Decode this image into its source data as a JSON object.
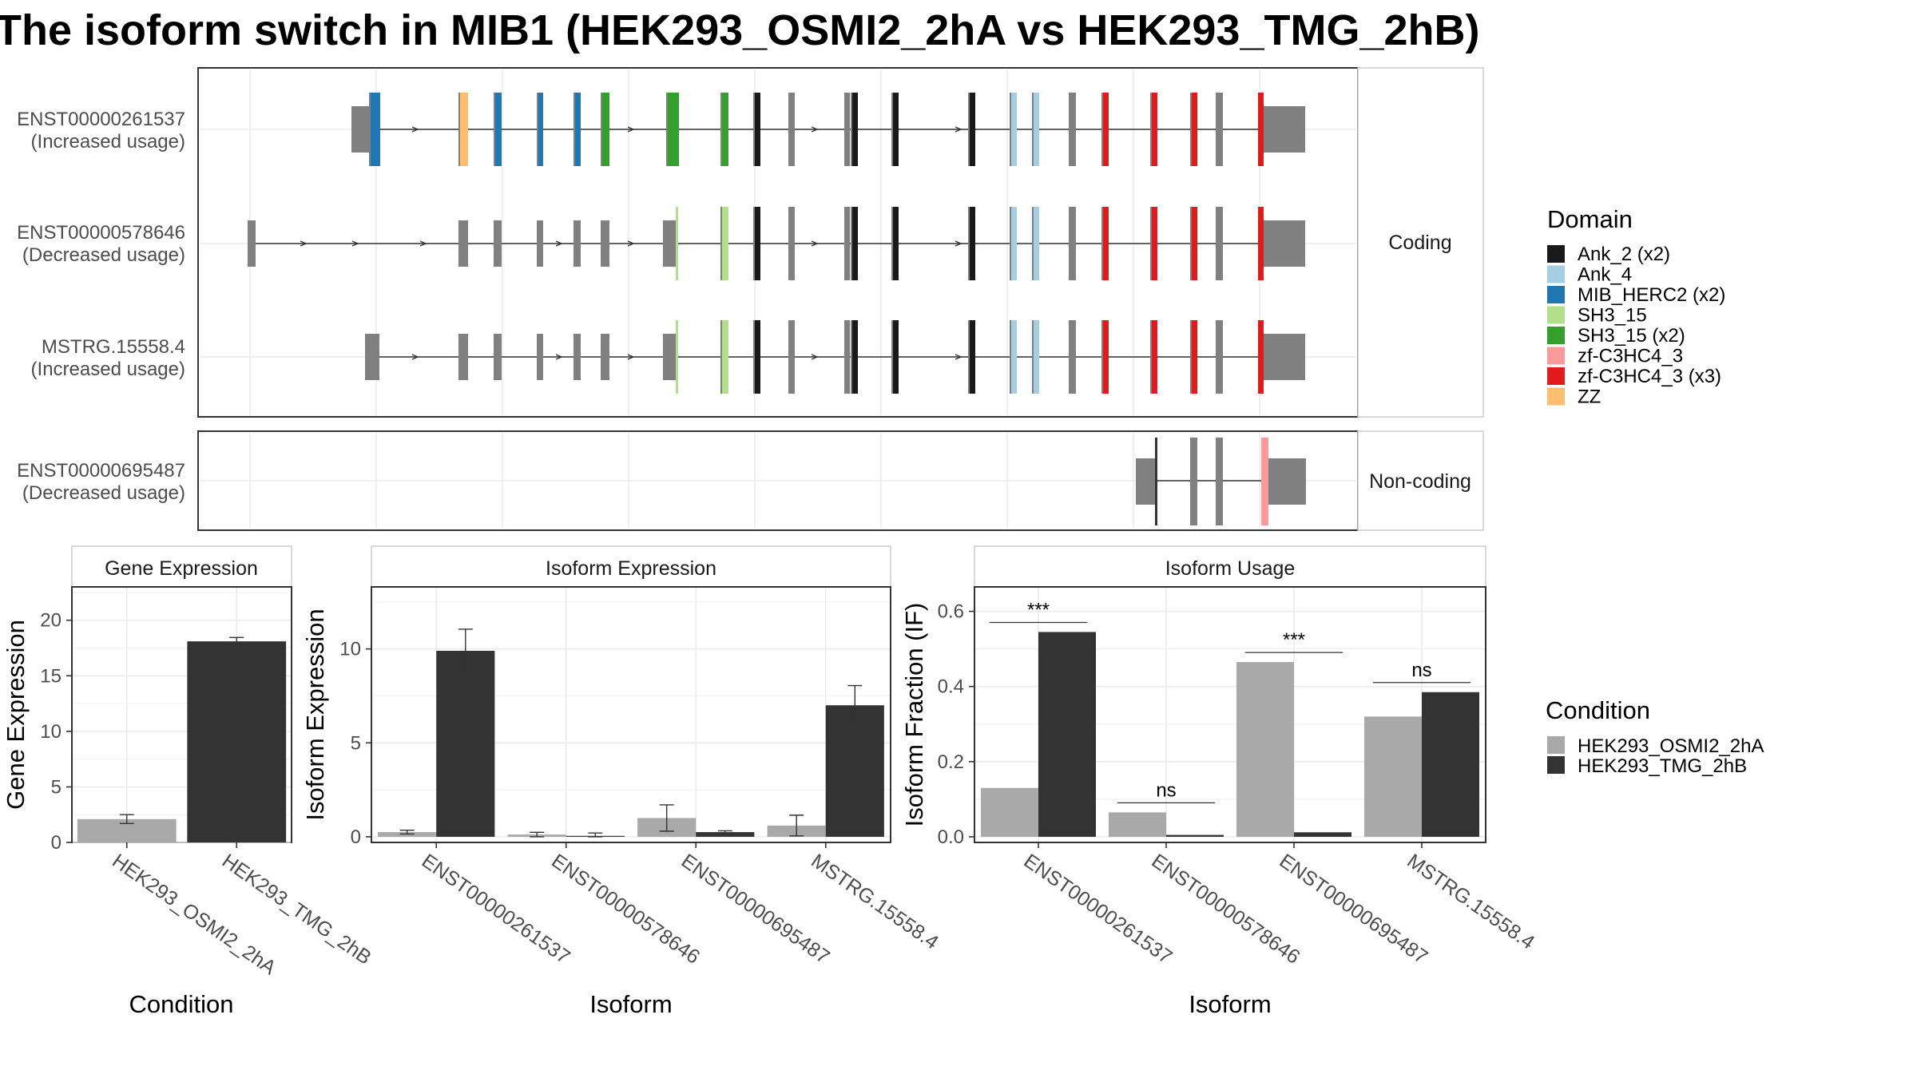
{
  "title": "The isoform switch in MIB1 (HEK293_OSMI2_2hA vs HEK293_TMG_2hB)",
  "transcripts": {
    "facets": [
      "Coding",
      "Non-coding"
    ],
    "rows": [
      {
        "id": "ENST00000261537",
        "usage": "(Increased usage)",
        "facet": "Coding"
      },
      {
        "id": "ENST00000578646",
        "usage": "(Decreased usage)",
        "facet": "Coding"
      },
      {
        "id": "MSTRG.15558.4",
        "usage": "(Increased usage)",
        "facet": "Coding"
      },
      {
        "id": "ENST00000695487",
        "usage": "(Decreased usage)",
        "facet": "Non-coding"
      }
    ]
  },
  "legend_domain": {
    "title": "Domain",
    "items": [
      {
        "label": "Ank_2 (x2)",
        "color": "#1a1a1a"
      },
      {
        "label": "Ank_4",
        "color": "#a6cee3"
      },
      {
        "label": "MIB_HERC2 (x2)",
        "color": "#1f78b4"
      },
      {
        "label": "SH3_15",
        "color": "#b2df8a"
      },
      {
        "label": "SH3_15 (x2)",
        "color": "#33a02c"
      },
      {
        "label": "zf-C3HC4_3",
        "color": "#fb9a99"
      },
      {
        "label": "zf-C3HC4_3 (x3)",
        "color": "#e31a1c"
      },
      {
        "label": "ZZ",
        "color": "#fdbf6f"
      }
    ]
  },
  "legend_condition": {
    "title": "Condition",
    "items": [
      {
        "label": "HEK293_OSMI2_2hA",
        "color": "#a9a9a9"
      },
      {
        "label": "HEK293_TMG_2hB",
        "color": "#333333"
      }
    ]
  },
  "chart_data": [
    {
      "type": "bar",
      "title": "Gene Expression",
      "xlabel": "Condition",
      "ylabel": "Gene Expression",
      "categories": [
        "HEK293_OSMI2_2hA",
        "HEK293_TMG_2hB"
      ],
      "values": [
        2.1,
        18.1
      ],
      "errors": [
        0.4,
        0.35
      ],
      "ylim": [
        0,
        23
      ],
      "yticks": [
        0,
        5,
        10,
        15,
        20
      ],
      "colors": [
        "#a9a9a9",
        "#333333"
      ]
    },
    {
      "type": "bar",
      "title": "Isoform Expression",
      "xlabel": "Isoform",
      "ylabel": "Isoform Expression",
      "categories": [
        "ENST00000261537",
        "ENST00000578646",
        "ENST00000695487",
        "MSTRG.15558.4"
      ],
      "series": [
        {
          "name": "HEK293_OSMI2_2hA",
          "values": [
            0.25,
            0.12,
            1.0,
            0.6
          ],
          "errors": [
            0.1,
            0.12,
            0.7,
            0.55
          ]
        },
        {
          "name": "HEK293_TMG_2hB",
          "values": [
            9.9,
            0.05,
            0.25,
            7.0
          ],
          "errors": [
            1.15,
            0.15,
            0.07,
            1.05
          ]
        }
      ],
      "ylim": [
        -0.3,
        13.3
      ],
      "yticks": [
        0,
        5,
        10
      ]
    },
    {
      "type": "bar",
      "title": "Isoform Usage",
      "xlabel": "Isoform",
      "ylabel": "Isoform Fraction (IF)",
      "categories": [
        "ENST00000261537",
        "ENST00000578646",
        "ENST00000695487",
        "MSTRG.15558.4"
      ],
      "series": [
        {
          "name": "HEK293_OSMI2_2hA",
          "values": [
            0.13,
            0.065,
            0.465,
            0.32
          ]
        },
        {
          "name": "HEK293_TMG_2hB",
          "values": [
            0.545,
            0.005,
            0.012,
            0.385
          ]
        }
      ],
      "significance": [
        "***",
        "ns",
        "***",
        "ns"
      ],
      "ylim": [
        -0.015,
        0.665
      ],
      "yticks": [
        "0.0",
        "0.2",
        "0.4",
        "0.6"
      ]
    }
  ]
}
